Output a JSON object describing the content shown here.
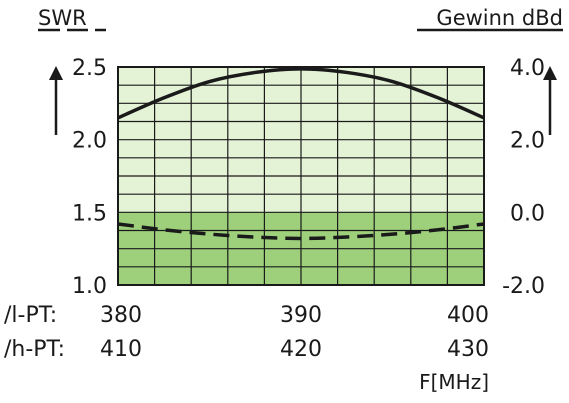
{
  "chart_data": {
    "type": "line",
    "left_axis": {
      "title": "SWR",
      "ticks": [
        "2.5",
        "2.0",
        "1.5",
        "1.0"
      ],
      "ylim": [
        1.0,
        2.5
      ]
    },
    "right_axis": {
      "title": "Gewinn dBd",
      "ticks": [
        "4.0",
        "2.0",
        "0.0",
        "-2.0"
      ],
      "ylim": [
        -2.0,
        4.0
      ]
    },
    "x_rows": [
      {
        "prefix": "/l-PT:",
        "ticks": [
          "380",
          "390",
          "400"
        ]
      },
      {
        "prefix": "/h-PT:",
        "ticks": [
          "410",
          "420",
          "430"
        ]
      }
    ],
    "xlabel": "F[MHz]",
    "x": [
      380,
      382.5,
      385,
      387.5,
      390,
      392.5,
      395,
      397.5,
      400
    ],
    "series": [
      {
        "axis": "right",
        "style": "solid",
        "values": [
          2.6,
          3.15,
          3.6,
          3.85,
          3.95,
          3.85,
          3.6,
          3.15,
          2.6
        ]
      },
      {
        "axis": "left",
        "style": "dashed",
        "values": [
          1.42,
          1.38,
          1.35,
          1.33,
          1.32,
          1.33,
          1.35,
          1.38,
          1.42
        ]
      }
    ],
    "grid": true,
    "colors": {
      "upper_fill": "#e4f2d6",
      "lower_fill": "#9ed07c",
      "grid": "#1a1a1a",
      "line": "#1a1a1a"
    }
  }
}
